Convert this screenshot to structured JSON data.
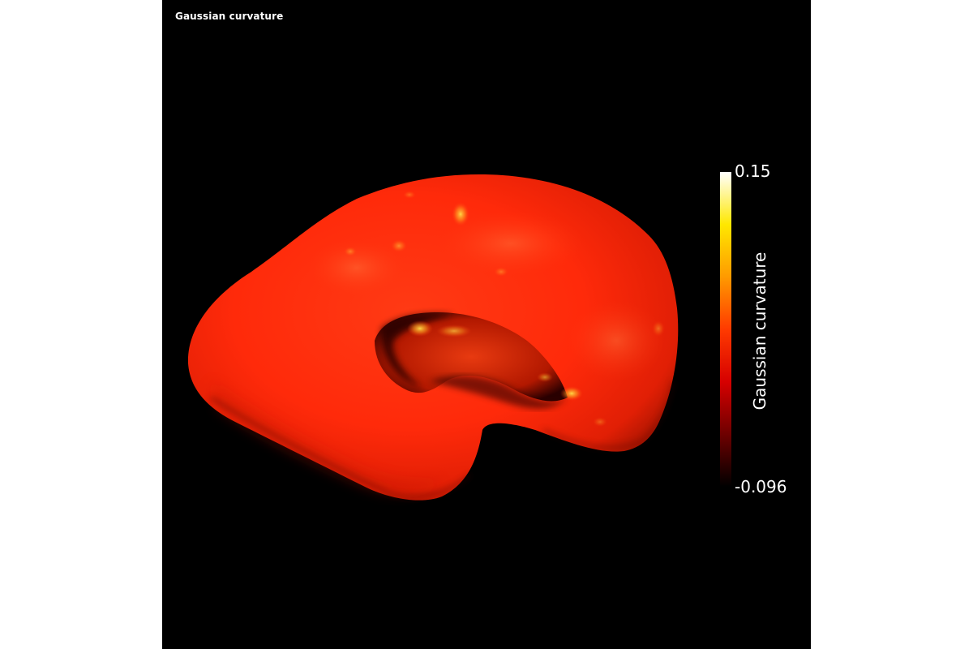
{
  "viewer": {
    "title": "Gaussian curvature",
    "object": "cortical-surface-mesh"
  },
  "colorbar": {
    "title": "Gaussian curvature",
    "max_label": "0.15",
    "min_label": "-0.096",
    "min": -0.096,
    "max": 0.15,
    "colormap": "hot",
    "colors": [
      "#000000",
      "#6e0000",
      "#d60000",
      "#ff3a00",
      "#ff9a00",
      "#ffe800",
      "#ffffff"
    ]
  },
  "surface": {
    "base_color": "#ff2a0a",
    "highlight_color": "#ffe04a",
    "shadow_color": "#3a0000"
  }
}
